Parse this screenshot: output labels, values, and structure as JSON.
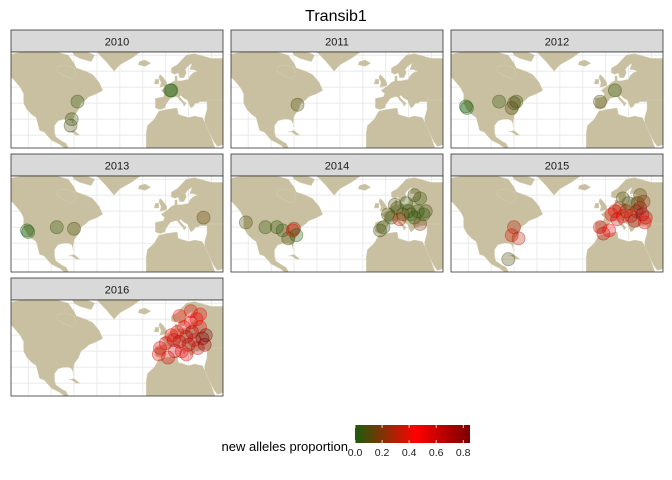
{
  "chart_data": {
    "type": "scatter",
    "title": "Transib1",
    "facet_variable": "year",
    "facets": [
      "2010",
      "2011",
      "2012",
      "2013",
      "2014",
      "2015",
      "2016"
    ],
    "x_label": "",
    "y_label": "",
    "grid": true,
    "legend": {
      "title": "new alleles proportion",
      "position": "bottom",
      "ticks": [
        "0.0",
        "0.2",
        "0.4",
        "0.6",
        "0.8"
      ],
      "range": [
        0,
        0.85
      ],
      "colors": [
        "#1a5c0a",
        "#ff0000",
        "#7a0000"
      ]
    },
    "map_colors": {
      "land": "#c8c0a0",
      "panel": "#ffffff",
      "strip": "#d9d9d9",
      "grid": "#e6e6e6"
    },
    "points": {
      "2010": [
        {
          "lon": -77,
          "lat": 41,
          "v": 0.05
        },
        {
          "lon": -82,
          "lat": 30,
          "v": 0.05
        },
        {
          "lon": -83,
          "lat": 26,
          "v": 0.1
        },
        {
          "lon": 5,
          "lat": 48,
          "v": 0.0
        },
        {
          "lon": 4,
          "lat": 48,
          "v": 0.0
        }
      ],
      "2011": [
        {
          "lon": -77,
          "lat": 39,
          "v": 0.1
        }
      ],
      "2012": [
        {
          "lon": -122,
          "lat": 38,
          "v": 0.0
        },
        {
          "lon": -121,
          "lat": 37,
          "v": 0.0
        },
        {
          "lon": -93,
          "lat": 41,
          "v": 0.05
        },
        {
          "lon": -80,
          "lat": 40,
          "v": 0.15
        },
        {
          "lon": -78,
          "lat": 41,
          "v": 0.05
        },
        {
          "lon": -82,
          "lat": 37,
          "v": 0.1
        },
        {
          "lon": 8,
          "lat": 48,
          "v": 0.05
        },
        {
          "lon": -5,
          "lat": 41,
          "v": 0.1
        }
      ],
      "2013": [
        {
          "lon": -121,
          "lat": 38,
          "v": 0.0
        },
        {
          "lon": -120,
          "lat": 37,
          "v": 0.0
        },
        {
          "lon": -95,
          "lat": 40,
          "v": 0.05
        },
        {
          "lon": -80,
          "lat": 39,
          "v": 0.1
        },
        {
          "lon": 33,
          "lat": 46,
          "v": 0.15
        }
      ],
      "2014": [
        {
          "lon": -122,
          "lat": 43,
          "v": 0.1
        },
        {
          "lon": -105,
          "lat": 40,
          "v": 0.05
        },
        {
          "lon": -95,
          "lat": 40,
          "v": 0.05
        },
        {
          "lon": -90,
          "lat": 38,
          "v": 0.05
        },
        {
          "lon": -85,
          "lat": 33,
          "v": 0.1
        },
        {
          "lon": -80,
          "lat": 39,
          "v": 0.2
        },
        {
          "lon": -81,
          "lat": 38,
          "v": 0.5
        },
        {
          "lon": -78,
          "lat": 35,
          "v": 0.0
        },
        {
          "lon": -5,
          "lat": 38,
          "v": 0.1
        },
        {
          "lon": -2,
          "lat": 40,
          "v": 0.05
        },
        {
          "lon": 2,
          "lat": 48,
          "v": 0.1
        },
        {
          "lon": 5,
          "lat": 46,
          "v": 0.05
        },
        {
          "lon": 10,
          "lat": 52,
          "v": 0.05
        },
        {
          "lon": 12,
          "lat": 45,
          "v": 0.35
        },
        {
          "lon": 15,
          "lat": 48,
          "v": 0.1
        },
        {
          "lon": 18,
          "lat": 55,
          "v": 0.05
        },
        {
          "lon": 20,
          "lat": 50,
          "v": 0.05
        },
        {
          "lon": 22,
          "lat": 48,
          "v": 0.1
        },
        {
          "lon": 25,
          "lat": 46,
          "v": 0.0
        },
        {
          "lon": 28,
          "lat": 50,
          "v": 0.05
        },
        {
          "lon": 30,
          "lat": 58,
          "v": 0.05
        },
        {
          "lon": 30,
          "lat": 42,
          "v": 0.2
        },
        {
          "lon": 33,
          "lat": 48,
          "v": 0.0
        },
        {
          "lon": 35,
          "lat": 50,
          "v": 0.1
        },
        {
          "lon": 25,
          "lat": 60,
          "v": 0.1
        },
        {
          "lon": 8,
          "lat": 54,
          "v": 0.1
        }
      ],
      "2015": [
        {
          "lon": -80,
          "lat": 40,
          "v": 0.3
        },
        {
          "lon": -82,
          "lat": 35,
          "v": 0.4
        },
        {
          "lon": -76,
          "lat": 33,
          "v": 0.3
        },
        {
          "lon": -85,
          "lat": 20,
          "v": 0.1
        },
        {
          "lon": -5,
          "lat": 40,
          "v": 0.55
        },
        {
          "lon": -2,
          "lat": 36,
          "v": 0.6
        },
        {
          "lon": 3,
          "lat": 38,
          "v": 0.5
        },
        {
          "lon": 5,
          "lat": 48,
          "v": 0.5
        },
        {
          "lon": 8,
          "lat": 50,
          "v": 0.4
        },
        {
          "lon": 10,
          "lat": 45,
          "v": 0.6
        },
        {
          "lon": 12,
          "lat": 52,
          "v": 0.35
        },
        {
          "lon": 15,
          "lat": 47,
          "v": 0.5
        },
        {
          "lon": 18,
          "lat": 50,
          "v": 0.3
        },
        {
          "lon": 20,
          "lat": 55,
          "v": 0.1
        },
        {
          "lon": 22,
          "lat": 47,
          "v": 0.6
        },
        {
          "lon": 25,
          "lat": 44,
          "v": 0.7
        },
        {
          "lon": 27,
          "lat": 50,
          "v": 0.3
        },
        {
          "lon": 28,
          "lat": 55,
          "v": 0.1
        },
        {
          "lon": 30,
          "lat": 52,
          "v": 0.75
        },
        {
          "lon": 32,
          "lat": 48,
          "v": 0.8
        },
        {
          "lon": 33,
          "lat": 56,
          "v": 0.25
        },
        {
          "lon": 35,
          "lat": 46,
          "v": 0.55
        },
        {
          "lon": 34,
          "lat": 43,
          "v": 0.5
        },
        {
          "lon": 30,
          "lat": 60,
          "v": 0.15
        },
        {
          "lon": 15,
          "lat": 58,
          "v": 0.1
        }
      ],
      "2016": [
        {
          "lon": -5,
          "lat": 42,
          "v": 0.55
        },
        {
          "lon": -6,
          "lat": 38,
          "v": 0.4
        },
        {
          "lon": 2,
          "lat": 36,
          "v": 0.55
        },
        {
          "lon": 0,
          "lat": 45,
          "v": 0.5
        },
        {
          "lon": 5,
          "lat": 50,
          "v": 0.45
        },
        {
          "lon": 7,
          "lat": 47,
          "v": 0.6
        },
        {
          "lon": 10,
          "lat": 52,
          "v": 0.5
        },
        {
          "lon": 12,
          "lat": 46,
          "v": 0.65
        },
        {
          "lon": 14,
          "lat": 40,
          "v": 0.5
        },
        {
          "lon": 16,
          "lat": 55,
          "v": 0.55
        },
        {
          "lon": 18,
          "lat": 49,
          "v": 0.6
        },
        {
          "lon": 20,
          "lat": 44,
          "v": 0.7
        },
        {
          "lon": 22,
          "lat": 58,
          "v": 0.45
        },
        {
          "lon": 23,
          "lat": 52,
          "v": 0.75
        },
        {
          "lon": 25,
          "lat": 47,
          "v": 0.6
        },
        {
          "lon": 27,
          "lat": 60,
          "v": 0.5
        },
        {
          "lon": 28,
          "lat": 42,
          "v": 0.65
        },
        {
          "lon": 30,
          "lat": 55,
          "v": 0.55
        },
        {
          "lon": 32,
          "lat": 48,
          "v": 0.8
        },
        {
          "lon": 34,
          "lat": 44,
          "v": 0.75
        },
        {
          "lon": 35,
          "lat": 50,
          "v": 0.85
        },
        {
          "lon": 30,
          "lat": 63,
          "v": 0.5
        },
        {
          "lon": 12,
          "lat": 62,
          "v": 0.45
        },
        {
          "lon": 22,
          "lat": 65,
          "v": 0.4
        },
        {
          "lon": 8,
          "lat": 40,
          "v": 0.6
        },
        {
          "lon": 18,
          "lat": 38,
          "v": 0.55
        }
      ]
    }
  }
}
